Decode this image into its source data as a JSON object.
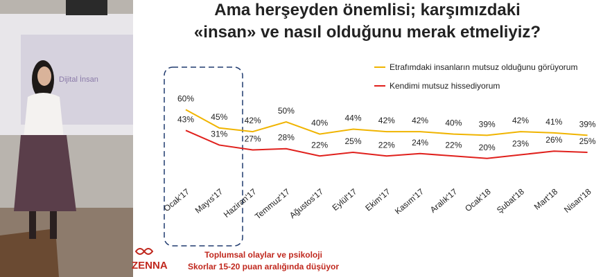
{
  "photo": {
    "slide_text": "Dijital İnsan"
  },
  "chart_data": {
    "type": "line",
    "title": [
      "Ama herşeyden önemlisi; karşımızdaki",
      "«insan» ve nasıl olduğunu merak etmeliyiz?"
    ],
    "categories": [
      "Ocak'17",
      "Mayıs'17",
      "Haziran'17",
      "Temmuz'17",
      "Ağustos'17",
      "Eylül'17",
      "Ekim'17",
      "Kasım'17",
      "Aralık'17",
      "Ocak'18",
      "Şubat'18",
      "Mart'18",
      "Nisan'18"
    ],
    "series": [
      {
        "name": "Etrafımdaki insanların mutsuz olduğunu görüyorum",
        "color": "#f0b400",
        "values": [
          60,
          45,
          42,
          50,
          40,
          44,
          42,
          42,
          40,
          39,
          42,
          41,
          39
        ],
        "value_labels": [
          "60%",
          "45%",
          "42%",
          "50%",
          "40%",
          "44%",
          "42%",
          "42%",
          "40%",
          "39%",
          "42%",
          "41%",
          "39%"
        ]
      },
      {
        "name": "Kendimi mutsuz hissediyorum",
        "color": "#e0201c",
        "values": [
          43,
          31,
          27,
          28,
          22,
          25,
          22,
          24,
          22,
          20,
          23,
          26,
          25
        ],
        "value_labels": [
          "43%",
          "31%",
          "27%",
          "28%",
          "22%",
          "25%",
          "22%",
          "24%",
          "22%",
          "20%",
          "23%",
          "26%",
          "25%"
        ]
      }
    ],
    "annotations": [
      "Toplumsal olaylar ve psikoloji",
      "Skorlar 15-20 puan aralığında düşüyor"
    ],
    "logo": "ZENNA"
  }
}
